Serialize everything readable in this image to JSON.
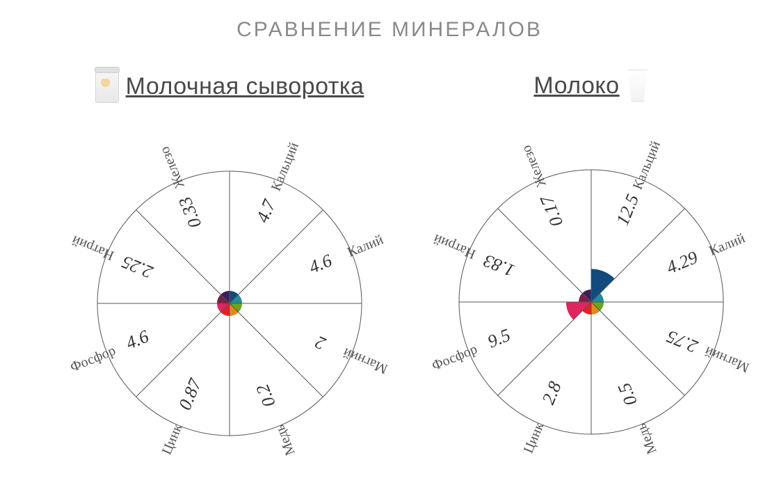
{
  "title": "СРАВНЕНИЕ МИНЕРАЛОВ",
  "title_color": "#8a8a8a",
  "title_fontsize": 30,
  "background_color": "#ffffff",
  "chart": {
    "type": "radial-wedge",
    "diameter": 400,
    "ring_stroke": "#555555",
    "ring_stroke_width": 1,
    "label_color": "#555555",
    "label_font": "serif",
    "label_fontsize": 20,
    "value_font": "serif",
    "value_fontsize": 26,
    "value_color": "#333333",
    "max_value": 50,
    "outer_radius": 190,
    "start_angle": -90,
    "segments": [
      {
        "key": "calcium",
        "label": "Кальций",
        "color": "#134a7c"
      },
      {
        "key": "potassium",
        "label": "Калий",
        "color": "#1e8e99"
      },
      {
        "key": "magnesium",
        "label": "Магний",
        "color": "#6aa61a"
      },
      {
        "key": "copper",
        "label": "Медь",
        "color": "#e18a1f"
      },
      {
        "key": "zinc",
        "label": "Цинк",
        "color": "#e52020"
      },
      {
        "key": "phosphorus",
        "label": "Фосфор",
        "color": "#e0255e"
      },
      {
        "key": "sodium",
        "label": "Натрий",
        "color": "#7a1f44"
      },
      {
        "key": "iron",
        "label": "Железо",
        "color": "#3a1f5c"
      }
    ]
  },
  "products": [
    {
      "name": "Молочная сыворотка",
      "icon": "jar",
      "icon_side": "left",
      "values": {
        "calcium": 4.7,
        "potassium": 4.6,
        "magnesium": 2,
        "copper": 0.2,
        "zinc": 0.87,
        "phosphorus": 4.6,
        "sodium": 2.25,
        "iron": 0.33
      }
    },
    {
      "name": "Молоко",
      "icon": "glass",
      "icon_side": "right",
      "values": {
        "calcium": 12.5,
        "potassium": 4.29,
        "magnesium": 2.75,
        "copper": 0.5,
        "zinc": 2.8,
        "phosphorus": 9.5,
        "sodium": 1.83,
        "iron": 0.17
      }
    }
  ]
}
